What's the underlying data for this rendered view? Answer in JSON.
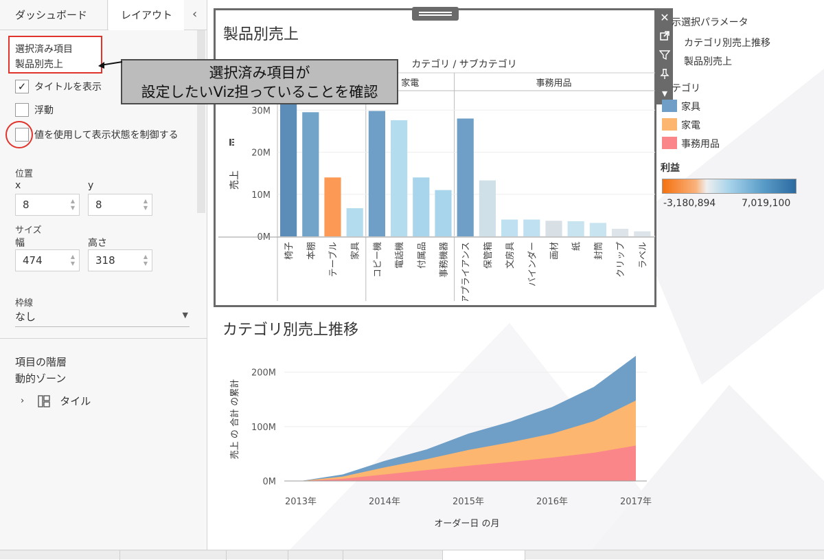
{
  "left_panel": {
    "tabs": [
      "ダッシュボード",
      "レイアウト"
    ],
    "collapse_icon": "‹",
    "selected_item": {
      "line1": "選択済み項目",
      "line2": "製品別売上"
    },
    "show_title": {
      "label": "タイトルを表示",
      "checked": true
    },
    "floating": {
      "label": "浮動",
      "checked": false
    },
    "visibility_control": {
      "label": "値を使用して表示状態を制御する",
      "checked": false
    },
    "position": {
      "label": "位置",
      "x_label": "x",
      "y_label": "y",
      "x": "8",
      "y": "8"
    },
    "size": {
      "label": "サイズ",
      "width_label": "幅",
      "height_label": "高さ",
      "width": "474",
      "height": "318"
    },
    "border": {
      "label": "枠線",
      "value": "なし"
    },
    "hierarchy": {
      "title": "項目の階層",
      "dynamic_zone": "動的ゾーン",
      "tile": "タイル"
    }
  },
  "callout": {
    "line1": "選択済み項目が",
    "line2": "設定したいViz担っていることを確認"
  },
  "chart1": {
    "title": "製品別売上",
    "header": "カテゴリ / サブカテゴリ",
    "ylabel": "売上",
    "yticks": [
      "0M",
      "10M",
      "20M",
      "30M"
    ]
  },
  "chart2": {
    "title": "カテゴリ別売上推移",
    "ylabel": "売上 の 合計 の累計",
    "xlabel": "オーダー日 の月",
    "yticks": [
      "0M",
      "100M",
      "200M"
    ],
    "xticks": [
      "2013年",
      "2014年",
      "2015年",
      "2016年",
      "2017年"
    ]
  },
  "legend": {
    "param_title": "示選択パラメータ",
    "param_options": [
      "カテゴリ別売上推移",
      "製品別売上"
    ],
    "category_title": "テゴリ",
    "categories": [
      {
        "name": "家具",
        "color": "#6f9fc6"
      },
      {
        "name": "家電",
        "color": "#fdb66f"
      },
      {
        "name": "事務用品",
        "color": "#fb8689"
      }
    ],
    "profit_title": "利益",
    "profit_min": "-3,180,894",
    "profit_max": "7,019,100"
  },
  "chart_data": [
    {
      "type": "bar",
      "title": "製品別売上",
      "ylabel": "売上",
      "ylim": [
        0,
        32
      ],
      "unit": "M",
      "groups": [
        "家具",
        "家電",
        "事務用品"
      ],
      "categories": [
        "椅子",
        "本棚",
        "テーブル",
        "家具",
        "コピー機",
        "電話機",
        "付属品",
        "事務機器",
        "アプライアンス",
        "保管箱",
        "文房具",
        "バインダー",
        "画材",
        "紙",
        "封筒",
        "クリップ",
        "ラベル"
      ],
      "group_of": [
        0,
        0,
        0,
        0,
        1,
        1,
        1,
        1,
        2,
        2,
        2,
        2,
        2,
        2,
        2,
        2,
        2
      ],
      "values": [
        31.5,
        29.5,
        14.0,
        6.7,
        29.8,
        27.6,
        14.0,
        11.0,
        28.0,
        13.3,
        4.0,
        4.0,
        3.7,
        3.6,
        3.2,
        1.8,
        1.2
      ],
      "colors": [
        "#5b8db8",
        "#72a3c9",
        "#fc9a55",
        "#b3dcef",
        "#6f9fc6",
        "#b3dcef",
        "#a8d5ec",
        "#a8d5ec",
        "#6f9fc6",
        "#cfe0e9",
        "#bfe0f0",
        "#bfe0f0",
        "#d8e0e5",
        "#c9e4f1",
        "#c9e4f1",
        "#dde5ea",
        "#dde5ea"
      ]
    },
    {
      "type": "area",
      "title": "カテゴリ別売上推移",
      "xlabel": "オーダー日 の月",
      "ylabel": "売上 の 合計 の累計",
      "ylim": [
        0,
        240
      ],
      "unit": "M",
      "x": [
        "2013-01",
        "2013-07",
        "2014-01",
        "2014-07",
        "2015-01",
        "2015-07",
        "2016-01",
        "2016-07",
        "2017-01"
      ],
      "series": [
        {
          "name": "事務用品",
          "values": [
            0,
            4,
            12,
            20,
            28,
            35,
            43,
            52,
            65
          ]
        },
        {
          "name": "家電",
          "values": [
            0,
            8,
            25,
            40,
            57,
            71,
            87,
            110,
            148
          ]
        },
        {
          "name": "家具",
          "values": [
            0,
            12,
            37,
            58,
            87,
            109,
            136,
            173,
            230
          ]
        }
      ]
    }
  ]
}
